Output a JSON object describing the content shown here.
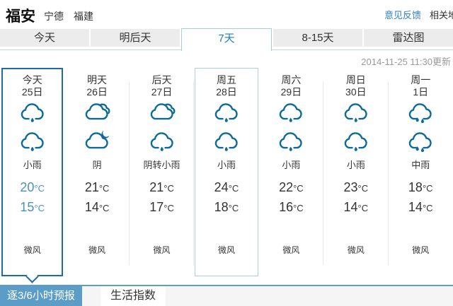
{
  "header": {
    "city": "福安",
    "prefecture": "宁德",
    "province": "福建",
    "feedback_link": "意见反馈",
    "related_link": "相关地区"
  },
  "tabs": {
    "items": [
      "今天",
      "明后天",
      "7天",
      "8-15天",
      "雷达图"
    ],
    "selected": "7天"
  },
  "update_time": "2014-11-25 11:30更新",
  "units": {
    "deg": "°C"
  },
  "forecast": {
    "days": [
      {
        "name": "今天",
        "date": "25日",
        "day_icon": "rain-1",
        "night_icon": "rain-1",
        "condition": "小雨",
        "high": "20",
        "low": "15",
        "wind": "微风",
        "highlighted": "today"
      },
      {
        "name": "明天",
        "date": "26日",
        "day_icon": "overcast",
        "night_icon": "cloud-moon",
        "condition": "阴",
        "high": "21",
        "low": "14",
        "wind": "微风",
        "highlighted": "none"
      },
      {
        "name": "后天",
        "date": "27日",
        "day_icon": "overcast",
        "night_icon": "rain-1",
        "condition": "阴转小雨",
        "high": "21",
        "low": "17",
        "wind": "微风",
        "highlighted": "none"
      },
      {
        "name": "周五",
        "date": "28日",
        "day_icon": "rain-1",
        "night_icon": "rain-1",
        "condition": "小雨",
        "high": "24",
        "low": "18",
        "wind": "微风",
        "highlighted": "friday"
      },
      {
        "name": "周六",
        "date": "29日",
        "day_icon": "rain-1",
        "night_icon": "rain-1",
        "condition": "小雨",
        "high": "22",
        "low": "16",
        "wind": "微风",
        "highlighted": "none"
      },
      {
        "name": "周日",
        "date": "30日",
        "day_icon": "rain-1",
        "night_icon": "rain-1",
        "condition": "小雨",
        "high": "23",
        "low": "14",
        "wind": "微风",
        "highlighted": "none"
      },
      {
        "name": "周一",
        "date": "1日",
        "day_icon": "rain-2",
        "night_icon": "rain-2",
        "condition": "中雨",
        "high": "18",
        "low": "14",
        "wind": "微风",
        "highlighted": "none"
      }
    ]
  },
  "bottom_tabs": {
    "hourly": "逐3/6小时预报",
    "life_index": "生活指数",
    "selected": "逐3/6小时预报"
  },
  "colors": {
    "accent_dark_blue": "#1e6ca3",
    "highlight_border_light": "#a9cfe4",
    "icon_blue": "#0e6a99",
    "selected_tab_text": "#1c7cc5",
    "today_temp_blue": "#4a8fc2",
    "bottom_tab_blue": "#5b9dc6",
    "feedback_link_blue": "#2e7fc1"
  }
}
